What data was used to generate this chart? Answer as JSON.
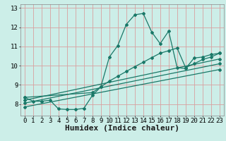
{
  "title": "",
  "xlabel": "Humidex (Indice chaleur)",
  "ylabel": "",
  "bg_color": "#cceee8",
  "grid_color": "#d9a0a0",
  "line_color": "#1a7868",
  "xlim": [
    -0.5,
    23.5
  ],
  "ylim": [
    7.4,
    13.2
  ],
  "xticks": [
    0,
    1,
    2,
    3,
    4,
    5,
    6,
    7,
    8,
    9,
    10,
    11,
    12,
    13,
    14,
    15,
    16,
    17,
    18,
    19,
    20,
    21,
    22,
    23
  ],
  "yticks": [
    8,
    9,
    10,
    11,
    12,
    13
  ],
  "line1_x": [
    0,
    1,
    2,
    3,
    4,
    5,
    6,
    7,
    8,
    9,
    10,
    11,
    12,
    13,
    14,
    15,
    16,
    17,
    18,
    19,
    20,
    21,
    22,
    23
  ],
  "line1_y": [
    8.35,
    8.15,
    8.15,
    8.2,
    7.75,
    7.72,
    7.72,
    7.78,
    8.45,
    8.9,
    10.45,
    11.05,
    12.15,
    12.65,
    12.72,
    11.75,
    11.15,
    11.8,
    9.9,
    9.85,
    10.4,
    10.45,
    10.58,
    10.65
  ],
  "line2_x": [
    0,
    8,
    9,
    10,
    11,
    12,
    13,
    14,
    15,
    16,
    17,
    18,
    19,
    20,
    21,
    22,
    23
  ],
  "line2_y": [
    8.35,
    8.6,
    8.9,
    9.2,
    9.45,
    9.7,
    9.95,
    10.18,
    10.42,
    10.65,
    10.78,
    10.92,
    9.9,
    10.1,
    10.32,
    10.45,
    10.65
  ],
  "line3_x": [
    0,
    23
  ],
  "line3_y": [
    8.2,
    10.35
  ],
  "line4_x": [
    0,
    23
  ],
  "line4_y": [
    8.05,
    10.1
  ],
  "line5_x": [
    0,
    23
  ],
  "line5_y": [
    7.85,
    9.8
  ],
  "xlabel_fontsize": 8,
  "tick_fontsize": 6.5
}
